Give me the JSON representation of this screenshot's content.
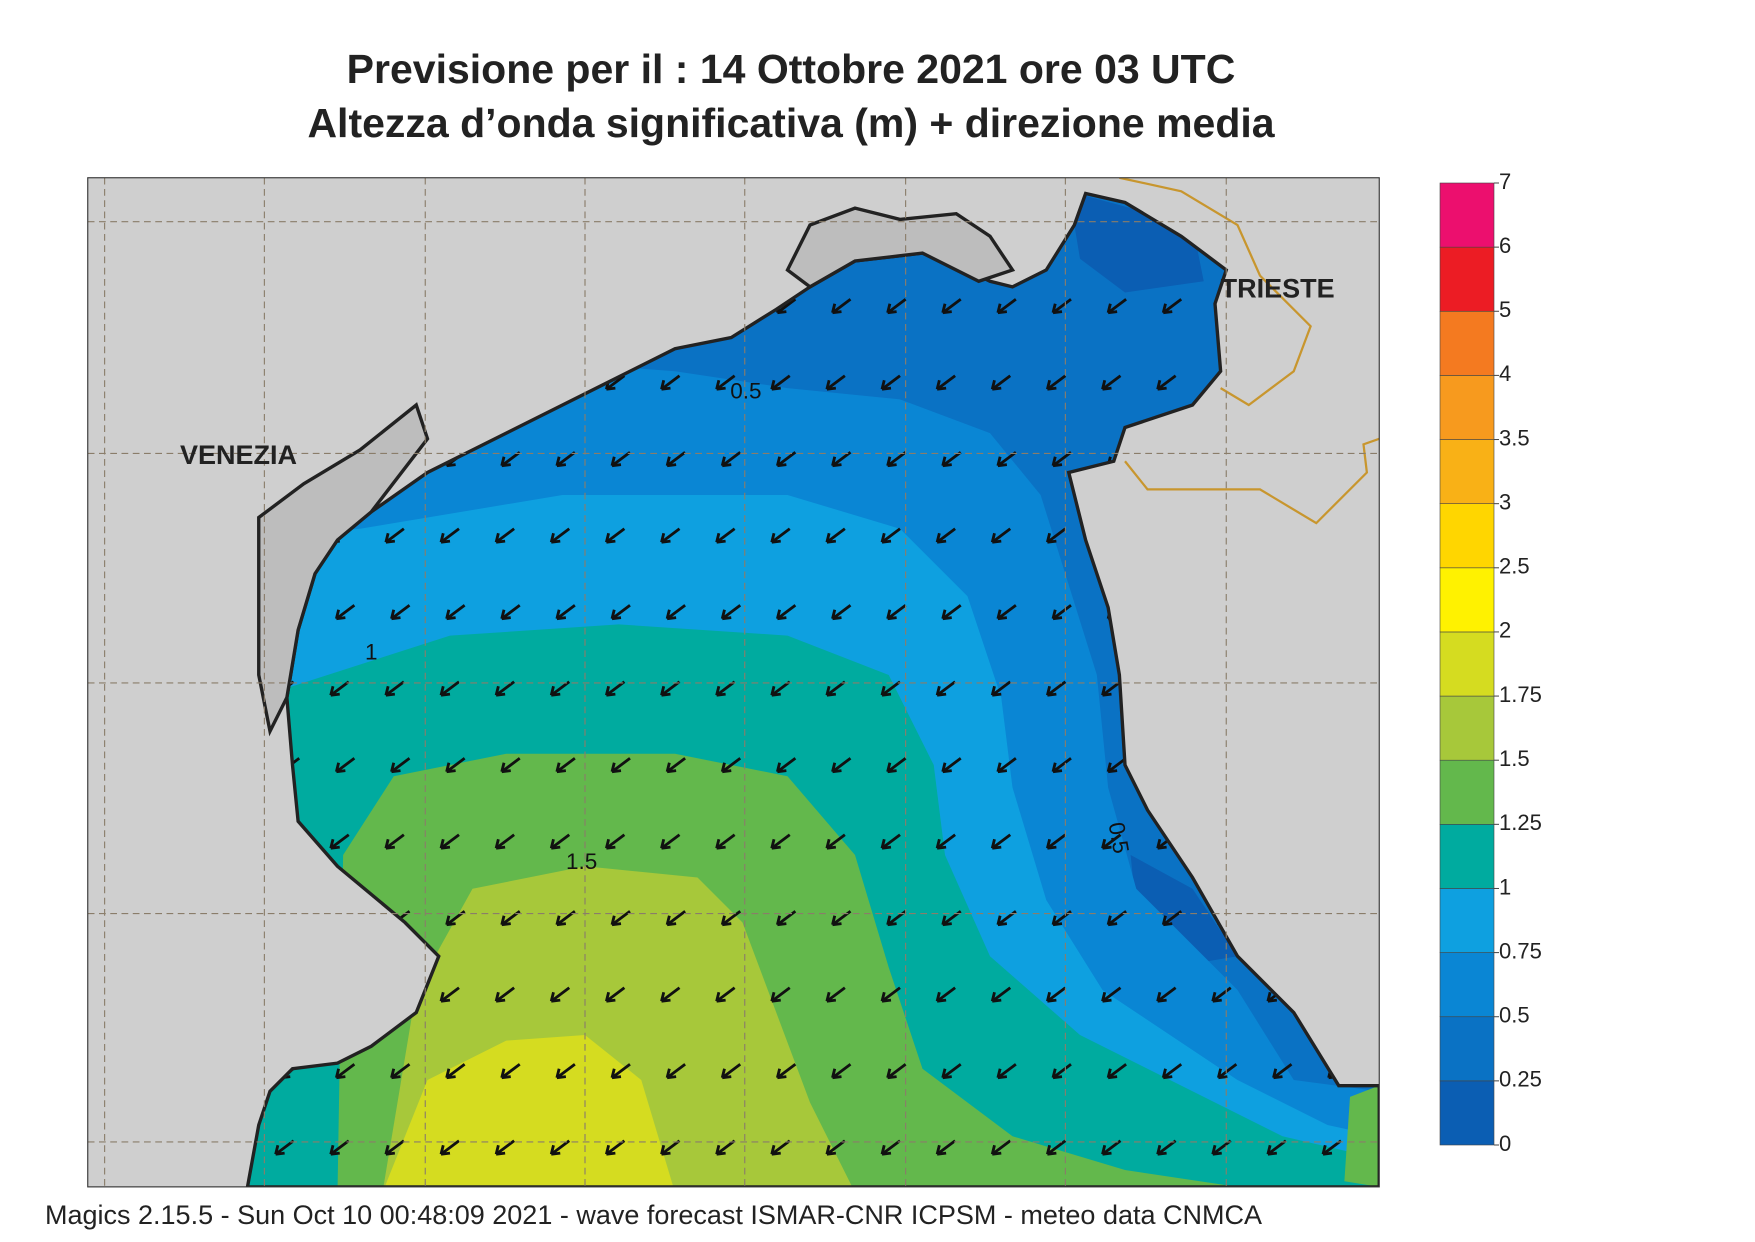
{
  "header": {
    "title_line1": "Previsione per il  :  14  Ottobre  2021   ore 03 UTC",
    "title_line2": "Altezza d’onda significativa (m) + direzione media"
  },
  "map": {
    "cities": [
      "VENEZIA",
      "TRIESTE"
    ],
    "contour_labels": [
      "0.5",
      "1",
      "1.5",
      "0.5"
    ]
  },
  "colorbar": {
    "levels": [
      0,
      0.25,
      0.5,
      0.75,
      1,
      1.25,
      1.5,
      1.75,
      2,
      2.5,
      3,
      3.5,
      4,
      5,
      6,
      7
    ],
    "colors": [
      "#0b5eb3",
      "#0a72c4",
      "#0a86d4",
      "#0ea0e0",
      "#00ab9f",
      "#63b84c",
      "#a7c83a",
      "#d5dc20",
      "#fff200",
      "#ffd600",
      "#f9b116",
      "#f79a1e",
      "#f47a20",
      "#ec1c24",
      "#ec0f6e"
    ]
  },
  "footer": "Magics 2.15.5 - Sun Oct 10 00:48:09 2021 - wave forecast  ISMAR-CNR  ICPSM - meteo data   CNMCA"
}
